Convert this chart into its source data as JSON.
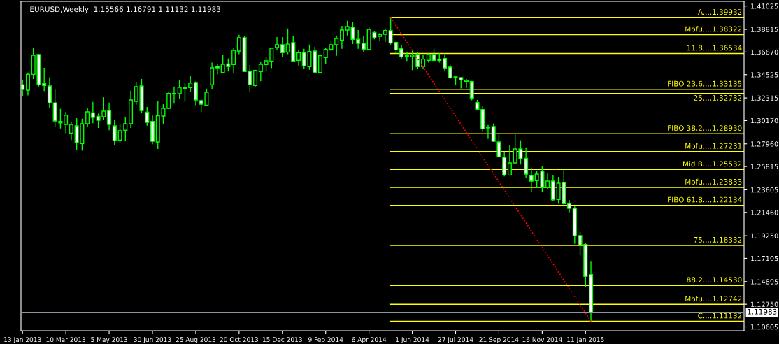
{
  "chart_data": {
    "type": "candlestick",
    "title": "EURUSD,Weekly  1.15566 1.16791 1.11132 1.11983",
    "series": [
      {
        "type": "candlestick",
        "color": "#00ff00",
        "x": [
          "2013-01-13",
          "2013-01-20",
          "2013-01-27",
          "2013-02-03",
          "2013-02-10",
          "2013-02-17",
          "2013-02-24",
          "2013-03-03",
          "2013-03-10",
          "2013-03-17",
          "2013-03-24",
          "2013-03-31",
          "2013-04-07",
          "2013-04-14",
          "2013-04-21",
          "2013-04-28",
          "2013-05-05",
          "2013-05-12",
          "2013-05-19",
          "2013-05-26",
          "2013-06-02",
          "2013-06-09",
          "2013-06-16",
          "2013-06-23",
          "2013-06-30",
          "2013-07-07",
          "2013-07-14",
          "2013-07-21",
          "2013-07-28",
          "2013-08-04",
          "2013-08-11",
          "2013-08-18",
          "2013-08-25",
          "2013-09-01",
          "2013-09-08",
          "2013-09-15",
          "2013-09-22",
          "2013-09-29",
          "2013-10-06",
          "2013-10-13",
          "2013-10-20",
          "2013-10-27",
          "2013-11-03",
          "2013-11-10",
          "2013-11-17",
          "2013-11-24",
          "2013-12-01",
          "2013-12-08",
          "2013-12-15",
          "2013-12-22",
          "2013-12-29",
          "2014-01-05",
          "2014-01-12",
          "2014-01-19",
          "2014-01-26",
          "2014-02-02",
          "2014-02-09",
          "2014-02-16",
          "2014-02-23",
          "2014-03-02",
          "2014-03-09",
          "2014-03-16",
          "2014-03-23",
          "2014-03-30",
          "2014-04-06",
          "2014-04-13",
          "2014-04-20",
          "2014-04-27",
          "2014-05-04",
          "2014-05-11",
          "2014-05-18",
          "2014-05-25",
          "2014-06-01",
          "2014-06-08",
          "2014-06-15",
          "2014-06-22",
          "2014-06-29",
          "2014-07-06",
          "2014-07-13",
          "2014-07-20",
          "2014-07-27",
          "2014-08-03",
          "2014-08-10",
          "2014-08-17",
          "2014-08-24",
          "2014-08-31",
          "2014-09-07",
          "2014-09-14",
          "2014-09-21",
          "2014-09-28",
          "2014-10-05",
          "2014-10-12",
          "2014-10-19",
          "2014-10-26",
          "2014-11-02",
          "2014-11-09",
          "2014-11-16",
          "2014-11-23",
          "2014-11-30",
          "2014-12-07",
          "2014-12-14",
          "2014-12-21",
          "2014-12-28",
          "2015-01-04",
          "2015-01-11",
          "2015-01-18"
        ],
        "ohlc": [
          [
            1.3356,
            1.34,
            1.3252,
            1.3311
          ],
          [
            1.3305,
            1.3473,
            1.3256,
            1.3455
          ],
          [
            1.3455,
            1.3709,
            1.3411,
            1.3636
          ],
          [
            1.3643,
            1.3649,
            1.334,
            1.3356
          ],
          [
            1.3367,
            1.3517,
            1.3296,
            1.3349
          ],
          [
            1.3345,
            1.3426,
            1.3135,
            1.3185
          ],
          [
            1.3185,
            1.3311,
            1.2958,
            1.3013
          ],
          [
            1.3009,
            1.3128,
            1.2942,
            1.2995
          ],
          [
            1.298,
            1.3101,
            1.2898,
            1.3068
          ],
          [
            1.2898,
            1.3002,
            1.2832,
            1.298
          ],
          [
            1.2967,
            1.304,
            1.2737,
            1.2808
          ],
          [
            1.2799,
            1.3035,
            1.2732,
            1.2987
          ],
          [
            1.2987,
            1.3135,
            1.2958,
            1.3099
          ],
          [
            1.309,
            1.3194,
            1.2991,
            1.3046
          ],
          [
            1.3057,
            1.3084,
            1.2947,
            1.302
          ],
          [
            1.3053,
            1.3238,
            1.3024,
            1.3106
          ],
          [
            1.3112,
            1.3188,
            1.2925,
            1.298
          ],
          [
            1.2967,
            1.302,
            1.2785,
            1.2827
          ],
          [
            1.2832,
            1.2987,
            1.2808,
            1.292
          ],
          [
            1.2925,
            1.3053,
            1.2825,
            1.2987
          ],
          [
            1.2987,
            1.33,
            1.2947,
            1.3212
          ],
          [
            1.3199,
            1.3384,
            1.3168,
            1.3338
          ],
          [
            1.3345,
            1.3411,
            1.309,
            1.3112
          ],
          [
            1.3097,
            1.3146,
            1.2969,
            1.3
          ],
          [
            1.3009,
            1.3064,
            1.2792,
            1.2821
          ],
          [
            1.2814,
            1.3201,
            1.2748,
            1.3062
          ],
          [
            1.306,
            1.3172,
            1.2987,
            1.3132
          ],
          [
            1.3132,
            1.3294,
            1.3124,
            1.3274
          ],
          [
            1.3269,
            1.334,
            1.3177,
            1.3274
          ],
          [
            1.3272,
            1.3398,
            1.3223,
            1.3331
          ],
          [
            1.3331,
            1.3373,
            1.3196,
            1.3322
          ],
          [
            1.3329,
            1.3444,
            1.3289,
            1.3373
          ],
          [
            1.3378,
            1.3389,
            1.3163,
            1.3212
          ],
          [
            1.3205,
            1.3223,
            1.3097,
            1.3172
          ],
          [
            1.3163,
            1.332,
            1.3157,
            1.3285
          ],
          [
            1.3356,
            1.3566,
            1.3314,
            1.3517
          ],
          [
            1.353,
            1.3554,
            1.3455,
            1.3517
          ],
          [
            1.3473,
            1.3643,
            1.3466,
            1.355
          ],
          [
            1.3554,
            1.3605,
            1.3482,
            1.3528
          ],
          [
            1.3548,
            1.3705,
            1.3466,
            1.3683
          ],
          [
            1.3676,
            1.3831,
            1.3647,
            1.3802
          ],
          [
            1.3802,
            1.3815,
            1.3477,
            1.3482
          ],
          [
            1.3484,
            1.3543,
            1.3289,
            1.3356
          ],
          [
            1.3349,
            1.3499,
            1.334,
            1.3493
          ],
          [
            1.3482,
            1.357,
            1.3389,
            1.355
          ],
          [
            1.3548,
            1.3619,
            1.3482,
            1.3583
          ],
          [
            1.3581,
            1.3703,
            1.3515,
            1.3703
          ],
          [
            1.3709,
            1.3809,
            1.3687,
            1.3736
          ],
          [
            1.3736,
            1.3809,
            1.3621,
            1.3661
          ],
          [
            1.3667,
            1.389,
            1.3647,
            1.3742
          ],
          [
            1.3756,
            1.3815,
            1.3574,
            1.3581
          ],
          [
            1.3588,
            1.3685,
            1.3539,
            1.3661
          ],
          [
            1.3663,
            1.3698,
            1.3506,
            1.3535
          ],
          [
            1.3528,
            1.3738,
            1.3499,
            1.3672
          ],
          [
            1.3676,
            1.3716,
            1.3468,
            1.3473
          ],
          [
            1.3473,
            1.3638,
            1.3466,
            1.3632
          ],
          [
            1.3614,
            1.3709,
            1.3552,
            1.3692
          ],
          [
            1.3694,
            1.3769,
            1.3676,
            1.3736
          ],
          [
            1.3736,
            1.3824,
            1.3632,
            1.3795
          ],
          [
            1.378,
            1.3915,
            1.3698,
            1.3875
          ],
          [
            1.3875,
            1.3963,
            1.3824,
            1.3908
          ],
          [
            1.3901,
            1.3948,
            1.3742,
            1.3787
          ],
          [
            1.3787,
            1.3875,
            1.3698,
            1.3749
          ],
          [
            1.3749,
            1.3815,
            1.3665,
            1.3694
          ],
          [
            1.3692,
            1.3901,
            1.3687,
            1.3882
          ],
          [
            1.3853,
            1.3864,
            1.3787,
            1.3802
          ],
          [
            1.3815,
            1.3848,
            1.3775,
            1.3831
          ],
          [
            1.3835,
            1.389,
            1.3764,
            1.3871
          ],
          [
            1.3871,
            1.3993,
            1.3738,
            1.3753
          ],
          [
            1.3758,
            1.3771,
            1.3649,
            1.3687
          ],
          [
            1.3698,
            1.3731,
            1.3605,
            1.3621
          ],
          [
            1.3632,
            1.3665,
            1.3581,
            1.3623
          ],
          [
            1.3623,
            1.368,
            1.3495,
            1.3638
          ],
          [
            1.3643,
            1.3665,
            1.3506,
            1.3528
          ],
          [
            1.3528,
            1.3638,
            1.3506,
            1.3599
          ],
          [
            1.3588,
            1.3658,
            1.3566,
            1.3643
          ],
          [
            1.3643,
            1.3698,
            1.3581,
            1.3588
          ],
          [
            1.3599,
            1.3654,
            1.3566,
            1.3588
          ],
          [
            1.3605,
            1.3638,
            1.3482,
            1.3515
          ],
          [
            1.3524,
            1.3546,
            1.3413,
            1.3422
          ],
          [
            1.3422,
            1.344,
            1.3356,
            1.3431
          ],
          [
            1.3424,
            1.3424,
            1.3322,
            1.3402
          ],
          [
            1.3389,
            1.3411,
            1.3327,
            1.34
          ],
          [
            1.3386,
            1.3393,
            1.3208,
            1.323
          ],
          [
            1.3188,
            1.3212,
            1.3124,
            1.3124
          ],
          [
            1.3121,
            1.3152,
            1.2911,
            1.2938
          ],
          [
            1.2947,
            1.2975,
            1.2843,
            1.2956
          ],
          [
            1.296,
            1.2989,
            1.2814,
            1.2821
          ],
          [
            1.2814,
            1.2896,
            1.2664,
            1.2673
          ],
          [
            1.2668,
            1.2715,
            1.2487,
            1.2502
          ],
          [
            1.25,
            1.2781,
            1.2494,
            1.2615
          ],
          [
            1.2615,
            1.2885,
            1.2611,
            1.2748
          ],
          [
            1.2748,
            1.283,
            1.26,
            1.2655
          ],
          [
            1.2659,
            1.2763,
            1.2474,
            1.2509
          ],
          [
            1.2496,
            1.2571,
            1.2339,
            1.2443
          ],
          [
            1.2447,
            1.2542,
            1.2377,
            1.2509
          ],
          [
            1.2536,
            1.2589,
            1.2339,
            1.2383
          ],
          [
            1.2383,
            1.2522,
            1.2361,
            1.2443
          ],
          [
            1.2443,
            1.2498,
            1.2255,
            1.2266
          ],
          [
            1.2268,
            1.2483,
            1.2228,
            1.2423
          ],
          [
            1.243,
            1.2558,
            1.2202,
            1.2228
          ],
          [
            1.223,
            1.2262,
            1.2147,
            1.2184
          ],
          [
            1.2184,
            1.2202,
            1.1848,
            1.1924
          ],
          [
            1.1926,
            1.1961,
            1.1738,
            1.1837
          ],
          [
            1.1842,
            1.1855,
            1.144,
            1.1539
          ],
          [
            1.15566,
            1.16791,
            1.11132,
            1.11983
          ]
        ]
      },
      {
        "type": "line",
        "color": "#ff0000",
        "line_style": "dotted",
        "x": [
          "2014-05-04",
          "2015-01-18"
        ],
        "values": [
          1.39932,
          1.11132
        ]
      },
      {
        "type": "line",
        "color": "#8a96a3",
        "line_style": "solid",
        "x": [
          "2013-01-11",
          "2015-08-04"
        ],
        "values": [
          1.11983,
          1.11983
        ],
        "value_labels": [
          null,
          "1.11983"
        ]
      }
    ],
    "ref_lines": [
      {
        "axis": "y",
        "value": 1.39932,
        "label": "A....1.39932",
        "color": "#ffff00"
      },
      {
        "axis": "y",
        "value": 1.38322,
        "label": "Mofu....1.38322",
        "color": "#ffff00"
      },
      {
        "axis": "y",
        "value": 1.36534,
        "label": "11.8....1.36534",
        "color": "#ffff00"
      },
      {
        "axis": "y",
        "value": 1.33135,
        "label": "FIBO 23.6....1.33135",
        "color": "#ffff00"
      },
      {
        "axis": "y",
        "value": 1.32732,
        "label": "25....1.32732",
        "color": "#ffff00"
      },
      {
        "axis": "y",
        "value": 1.2893,
        "label": "FIBO 38.2....1.28930",
        "color": "#ffff00"
      },
      {
        "axis": "y",
        "value": 1.27231,
        "label": "Mofu....1.27231",
        "color": "#ffff00"
      },
      {
        "axis": "y",
        "value": 1.25532,
        "label": "Mid B....1.25532",
        "color": "#ffff00"
      },
      {
        "axis": "y",
        "value": 1.23833,
        "label": "Mofu....1.23833",
        "color": "#ffff00"
      },
      {
        "axis": "y",
        "value": 1.22134,
        "label": "FIBO 61.8....1.22134",
        "color": "#ffff00"
      },
      {
        "axis": "y",
        "value": 1.18332,
        "label": "75....1.18332",
        "color": "#ffff00"
      },
      {
        "axis": "y",
        "value": 1.1453,
        "label": "88.2....1.14530",
        "color": "#ffff00"
      },
      {
        "axis": "y",
        "value": 1.12742,
        "label": "Mofu....1.12742",
        "color": "#ffff00"
      },
      {
        "axis": "y",
        "value": 1.11132,
        "label": "C....1.11132",
        "color": "#ffff00"
      }
    ],
    "xlim": [
      "2013-01-11",
      "2015-08-04"
    ],
    "xticks": [
      {
        "value": "2013-01-13",
        "label": "13 Jan 2013"
      },
      {
        "value": "2013-03-10",
        "label": "10 Mar 2013"
      },
      {
        "value": "2013-05-05",
        "label": "5 May 2013"
      },
      {
        "value": "2013-06-30",
        "label": "30 Jun 2013"
      },
      {
        "value": "2013-08-25",
        "label": "25 Aug 2013"
      },
      {
        "value": "2013-10-20",
        "label": "20 Oct 2013"
      },
      {
        "value": "2013-12-15",
        "label": "15 Dec 2013"
      },
      {
        "value": "2014-02-09",
        "label": "9 Feb 2014"
      },
      {
        "value": "2014-04-06",
        "label": "6 Apr 2014"
      },
      {
        "value": "2014-06-01",
        "label": "1 Jun 2014"
      },
      {
        "value": "2014-07-27",
        "label": "27 Jul 2014"
      },
      {
        "value": "2014-09-21",
        "label": "21 Sep 2014"
      },
      {
        "value": "2014-11-16",
        "label": "16 Nov 2014"
      },
      {
        "value": "2015-01-11",
        "label": "11 Jan 2015"
      }
    ],
    "ylim": [
      1.1024,
      1.4147
    ],
    "yticks": [
      1.41025,
      1.38815,
      {
        "value": 1.3667,
        "label": "1.36670"
      },
      1.34525,
      1.32315,
      {
        "value": 1.3017,
        "label": "1.30170"
      },
      {
        "value": 1.2796,
        "label": "1.27960"
      },
      1.25815,
      1.23605,
      {
        "value": 1.2146,
        "label": "1.21460"
      },
      {
        "value": 1.1925,
        "label": "1.19250"
      },
      1.17105,
      1.14895,
      {
        "value": 1.1275,
        "label": "1.12750"
      },
      1.10605
    ],
    "grid": false
  }
}
